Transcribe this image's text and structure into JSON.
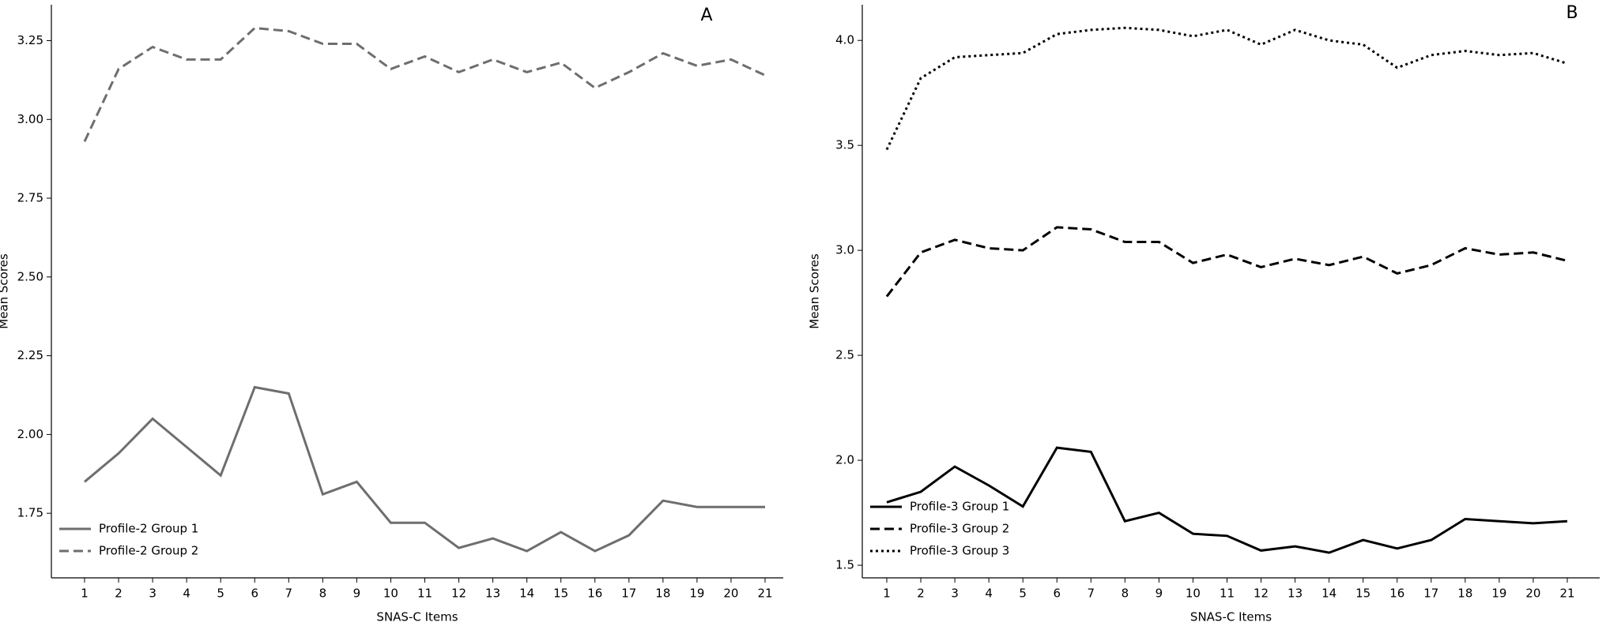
{
  "chart_data": [
    {
      "type": "line",
      "title": "A",
      "xlabel": "SNAS-C Items",
      "ylabel": "Mean Scores",
      "categories": [
        "1",
        "2",
        "3",
        "4",
        "5",
        "6",
        "7",
        "8",
        "9",
        "10",
        "11",
        "12",
        "13",
        "14",
        "15",
        "16",
        "17",
        "18",
        "19",
        "20",
        "21"
      ],
      "series": [
        {
          "name": "Profile-2 Group 1",
          "color": "#6e6e6e",
          "dash": "solid",
          "values": [
            1.85,
            1.94,
            2.05,
            1.96,
            1.87,
            2.15,
            2.13,
            1.81,
            1.85,
            1.72,
            1.72,
            1.64,
            1.67,
            1.63,
            1.69,
            1.63,
            1.68,
            1.79,
            1.77,
            1.77,
            1.77
          ]
        },
        {
          "name": "Profile-2 Group 2",
          "color": "#6e6e6e",
          "dash": "dashed",
          "values": [
            2.93,
            3.16,
            3.23,
            3.19,
            3.19,
            3.29,
            3.28,
            3.24,
            3.24,
            3.16,
            3.2,
            3.15,
            3.19,
            3.15,
            3.18,
            3.1,
            3.15,
            3.21,
            3.17,
            3.19,
            3.14
          ]
        }
      ],
      "ylim": [
        1.545,
        3.364
      ],
      "yticks": [
        1.75,
        {
          "value": 2,
          "label": "2.00"
        },
        2.25,
        {
          "value": 2.5,
          "label": "2.50"
        },
        2.75,
        {
          "value": 3,
          "label": "3.00"
        },
        3.25
      ],
      "legend": "lower left"
    },
    {
      "type": "line",
      "title": "B",
      "xlabel": "SNAS-C Items",
      "ylabel": "Mean Scores",
      "categories": [
        "1",
        "2",
        "3",
        "4",
        "5",
        "6",
        "7",
        "8",
        "9",
        "10",
        "11",
        "12",
        "13",
        "14",
        "15",
        "16",
        "17",
        "18",
        "19",
        "20",
        "21"
      ],
      "series": [
        {
          "name": "Profile-3 Group 1",
          "color": "#000000",
          "dash": "solid",
          "values": [
            1.8,
            1.85,
            1.97,
            1.88,
            1.78,
            2.06,
            2.04,
            1.71,
            1.75,
            1.65,
            1.64,
            1.57,
            1.59,
            1.56,
            1.62,
            1.58,
            1.62,
            1.72,
            1.71,
            1.7,
            1.71
          ]
        },
        {
          "name": "Profile-3 Group 2",
          "color": "#000000",
          "dash": "dashed",
          "values": [
            2.78,
            2.99,
            3.05,
            3.01,
            3.0,
            3.11,
            3.1,
            3.04,
            3.04,
            2.94,
            2.98,
            2.92,
            2.96,
            2.93,
            2.97,
            2.89,
            2.93,
            3.01,
            2.98,
            2.99,
            2.95
          ]
        },
        {
          "name": "Profile-3 Group 3",
          "color": "#000000",
          "dash": "dotted",
          "values": [
            3.48,
            3.82,
            3.92,
            3.93,
            3.94,
            4.03,
            4.05,
            4.06,
            4.05,
            4.02,
            4.05,
            3.98,
            4.05,
            4.0,
            3.98,
            3.87,
            3.93,
            3.95,
            3.93,
            3.94,
            3.89
          ]
        }
      ],
      "ylim": [
        1.44,
        4.17
      ],
      "yticks": [
        1.5,
        {
          "value": 2,
          "label": "2.0"
        },
        2.5,
        {
          "value": 3,
          "label": "3.0"
        },
        3.5,
        {
          "value": 4,
          "label": "4.0"
        }
      ],
      "legend": "lower left"
    }
  ]
}
